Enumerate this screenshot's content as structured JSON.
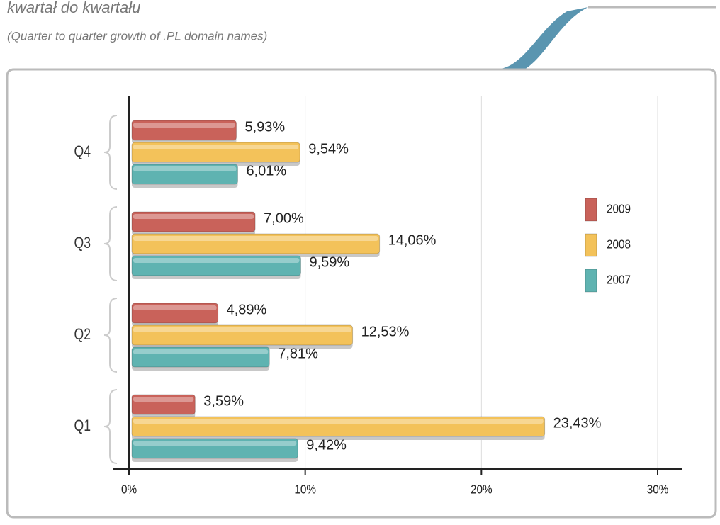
{
  "chart_data": {
    "type": "bar",
    "orientation": "horizontal",
    "title": "kwartał do kwartału",
    "subtitle": "(Quarter to quarter growth of .PL domain names)",
    "categories": [
      "Q1",
      "Q2",
      "Q3",
      "Q4"
    ],
    "series": [
      {
        "name": "2009",
        "color": "#c9625a",
        "values": [
          3.59,
          4.89,
          7.0,
          5.93
        ],
        "value_labels": [
          "3,59%",
          "4,89%",
          "7,00%",
          "5,93%"
        ]
      },
      {
        "name": "2008",
        "color": "#f3c25a",
        "values": [
          23.43,
          12.53,
          14.06,
          9.54
        ],
        "value_labels": [
          "23,43%",
          "12,53%",
          "14,06%",
          "9,54%"
        ]
      },
      {
        "name": "2007",
        "color": "#5fb3b1",
        "values": [
          9.42,
          7.81,
          9.59,
          6.01
        ],
        "value_labels": [
          "9,42%",
          "7,81%",
          "9,59%",
          "6,01%"
        ]
      }
    ],
    "xlim": [
      0,
      30
    ],
    "xticks": [
      {
        "value": 0,
        "label": "0%"
      },
      {
        "value": 10,
        "label": "10%"
      },
      {
        "value": 20,
        "label": "20%"
      },
      {
        "value": 30,
        "label": "30%"
      }
    ],
    "grid": true
  }
}
